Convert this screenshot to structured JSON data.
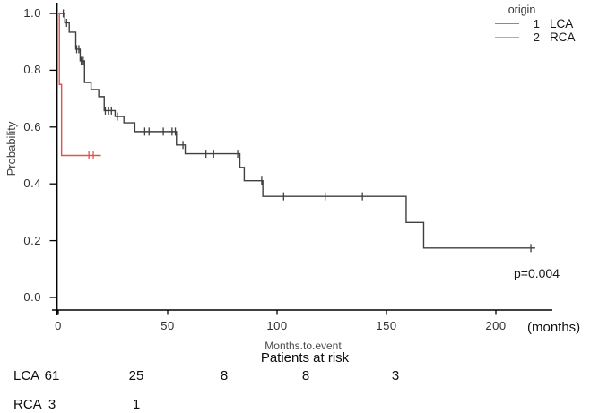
{
  "chart_data": {
    "type": "line",
    "subtype": "kaplan-meier-step-survival",
    "title": "",
    "xlabel": "Months.to.event",
    "x_unit_label": "(months)",
    "ylabel": "Probability",
    "x_ticks": [
      0,
      50,
      100,
      150,
      200
    ],
    "y_ticks": [
      0.0,
      0.2,
      0.4,
      0.6,
      0.8,
      1.0
    ],
    "xlim": [
      0,
      225
    ],
    "ylim": [
      0,
      1.0
    ],
    "grid": false,
    "legend_position": "top-right",
    "p_value": "p=0.004",
    "series": [
      {
        "name": "LCA",
        "group_code": "1",
        "color": "#3f3f3f",
        "steps": [
          [
            0,
            1.0
          ],
          [
            3,
            0.967
          ],
          [
            5,
            0.934
          ],
          [
            8,
            0.874
          ],
          [
            10,
            0.833
          ],
          [
            12,
            0.757
          ],
          [
            15,
            0.732
          ],
          [
            18.5,
            0.707
          ],
          [
            21,
            0.658
          ],
          [
            26,
            0.637
          ],
          [
            30,
            0.615
          ],
          [
            35,
            0.584
          ],
          [
            54,
            0.537
          ],
          [
            58,
            0.506
          ],
          [
            83,
            0.458
          ],
          [
            85,
            0.411
          ],
          [
            93.5,
            0.356
          ],
          [
            159,
            0.264
          ],
          [
            167,
            0.174
          ]
        ],
        "end_time": 218,
        "censor_marks": [
          [
            2.3,
            1.0
          ],
          [
            3.8,
            0.967
          ],
          [
            8.4,
            0.874
          ],
          [
            9.4,
            0.874
          ],
          [
            10.5,
            0.833
          ],
          [
            11.4,
            0.833
          ],
          [
            21.5,
            0.658
          ],
          [
            23,
            0.658
          ],
          [
            24.3,
            0.658
          ],
          [
            27,
            0.637
          ],
          [
            39.5,
            0.584
          ],
          [
            41.5,
            0.584
          ],
          [
            48,
            0.584
          ],
          [
            52,
            0.584
          ],
          [
            53.5,
            0.584
          ],
          [
            57,
            0.537
          ],
          [
            67.5,
            0.506
          ],
          [
            71,
            0.506
          ],
          [
            82,
            0.506
          ],
          [
            93,
            0.411
          ],
          [
            103,
            0.356
          ],
          [
            122,
            0.356
          ],
          [
            139,
            0.356
          ],
          [
            216,
            0.174
          ]
        ]
      },
      {
        "name": "RCA",
        "group_code": "2",
        "color": "#e2524a",
        "steps": [
          [
            0,
            1.0
          ],
          [
            0.5,
            0.75
          ],
          [
            1.5,
            0.5
          ]
        ],
        "end_time": 19.5,
        "censor_marks": [
          [
            14,
            0.5
          ],
          [
            16,
            0.5
          ]
        ]
      }
    ]
  },
  "legend": {
    "title": "origin",
    "items": [
      {
        "key": "1",
        "label": "LCA",
        "line_color": "#8a8a8a"
      },
      {
        "key": "2",
        "label": "RCA",
        "line_color": "#f0928a"
      }
    ]
  },
  "risk_table": {
    "title": "Patients at risk",
    "rows": [
      {
        "label": "LCA",
        "values": [
          "61",
          "25",
          "8",
          "8",
          "3"
        ]
      },
      {
        "label": "RCA",
        "values": [
          "3",
          "1"
        ]
      }
    ]
  }
}
